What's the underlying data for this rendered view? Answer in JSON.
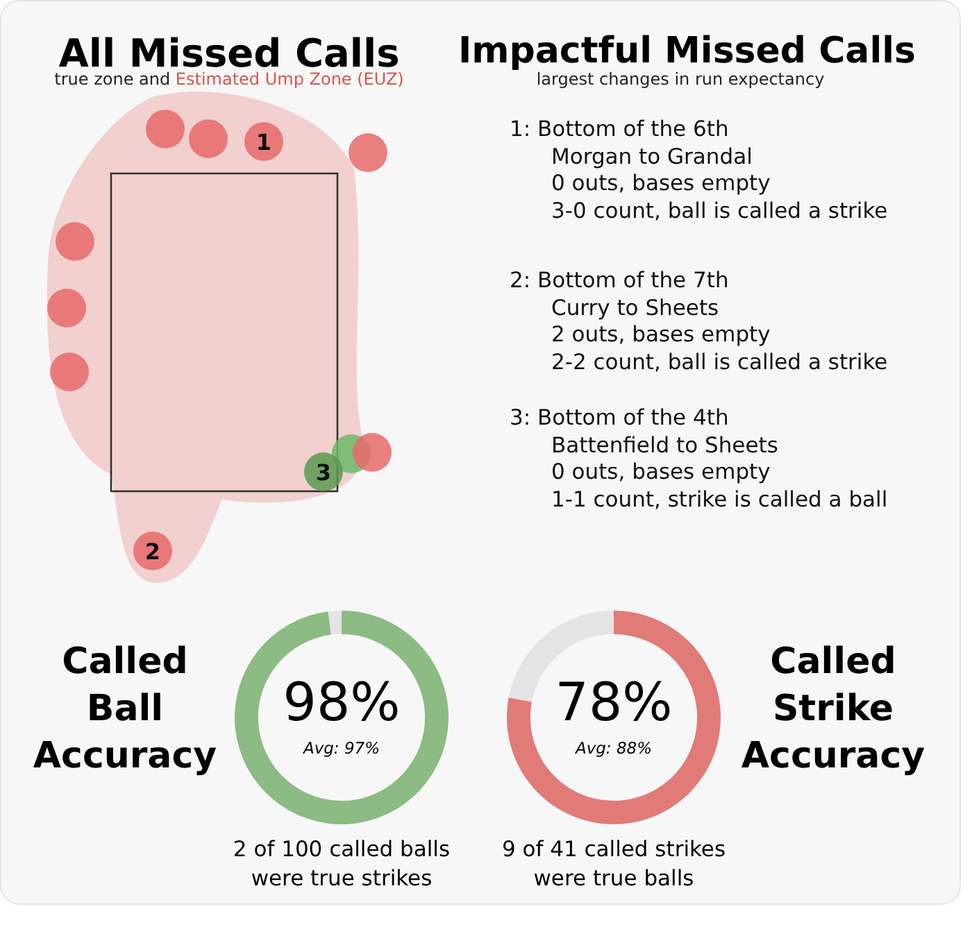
{
  "chart_data": [
    {
      "type": "other",
      "title": "All Missed Calls",
      "subtitle": "true zone and",
      "legend_title": "Estimated Ump Zone (EUZ)",
      "annotations": [
        "1",
        "2",
        "3"
      ]
    },
    {
      "type": "other",
      "title": "Impactful Missed Calls",
      "subtitle": "largest changes in run expectancy",
      "annotations": [
        "1:  Bottom of the 6th\nMorgan to Grandal\n0 outs, bases empty\n3-0 count, ball is called a strike",
        "2:  Bottom of the 7th\nCurry to Sheets\n2 outs, bases empty\n2-2 count, ball is called a strike",
        "3:  Bottom of the 4th\nBattenfield to Sheets\n0 outs, bases empty\n1-1 count, strike is called a ball"
      ]
    },
    {
      "type": "donut",
      "title": "Called Ball Accuracy",
      "categories": [
        null,
        null
      ],
      "values": [
        98,
        2
      ],
      "colors": [
        "#8cbb84",
        "#e4e4e4"
      ],
      "value_labels": [
        "98%",
        null
      ],
      "annotations": [
        "Avg: 97%",
        "2 of 100 called balls\nwere true strikes"
      ]
    },
    {
      "type": "donut",
      "title": "Called Strike Accuracy",
      "categories": [
        null,
        null
      ],
      "values": [
        78,
        22
      ],
      "colors": [
        "#e07b78",
        "#e4e4e4"
      ],
      "value_labels": [
        "78%",
        null
      ],
      "annotations": [
        "Avg: 88%",
        "9 of 41 called strikes\nwere true balls"
      ]
    }
  ]
}
